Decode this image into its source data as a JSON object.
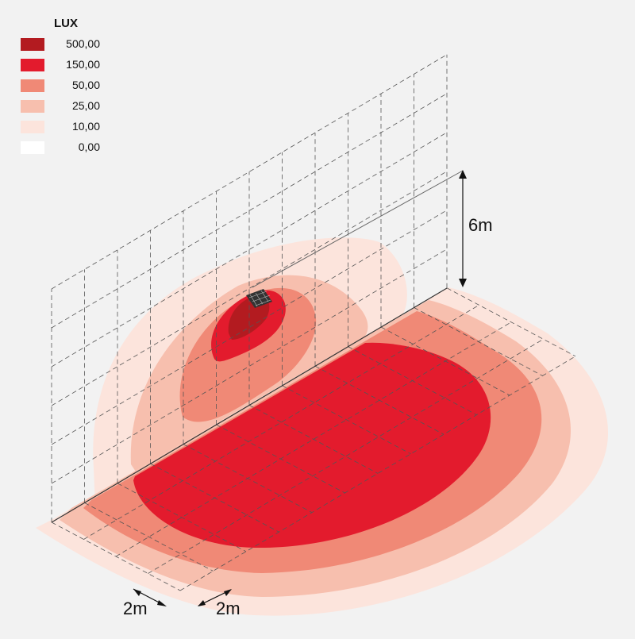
{
  "legend": {
    "title": "LUX",
    "items": [
      {
        "label": "500,00",
        "color": "#b31b20"
      },
      {
        "label": "150,00",
        "color": "#e31b2d"
      },
      {
        "label": "50,00",
        "color": "#f08976"
      },
      {
        "label": "25,00",
        "color": "#f7bfae"
      },
      {
        "label": "10,00",
        "color": "#fce4dc"
      },
      {
        "label": "0,00",
        "color": "#ffffff"
      }
    ]
  },
  "dimensions": {
    "height": "6m",
    "grid_left": "2m",
    "grid_right": "2m"
  }
}
